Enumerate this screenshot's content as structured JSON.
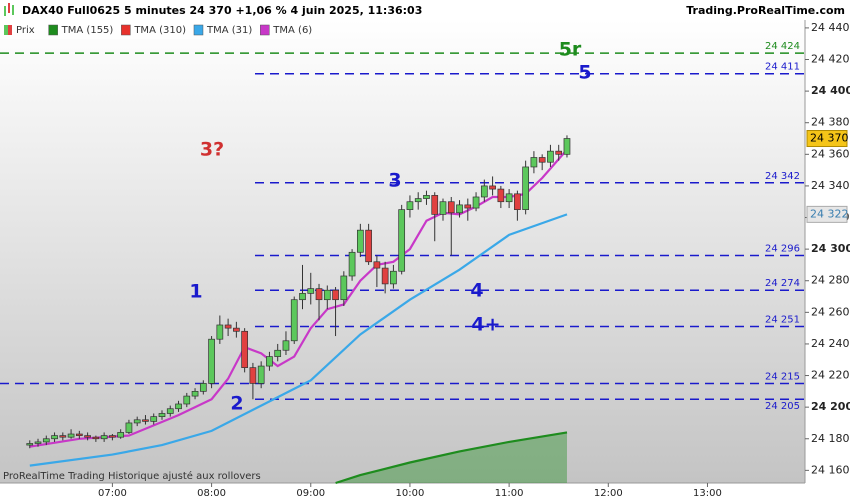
{
  "header": {
    "title": "DAX40 Full0625 5 minutes 24 370 +1,06 % 4 juin 2025, 11:36:03",
    "site": "Trading.ProRealTime.com"
  },
  "footer": "ProRealTime Trading  Historique ajusté aux rollovers",
  "chart_data": {
    "type": "candlestick",
    "price_name": "Prix",
    "up_color": "#5cc85c",
    "down_color": "#e04040",
    "x": [
      370,
      375,
      380,
      385,
      390,
      395,
      400,
      405,
      410,
      415,
      420,
      425,
      430,
      435,
      440,
      445,
      450,
      455,
      460,
      465,
      470,
      475,
      480,
      485,
      490,
      495,
      500,
      505,
      510,
      515,
      520,
      525,
      530,
      535,
      540,
      545,
      550,
      555,
      560,
      565,
      570,
      575,
      580,
      585,
      590,
      595,
      600,
      605,
      610,
      615,
      620,
      625,
      630,
      635,
      640,
      645,
      650,
      655,
      660,
      665,
      670,
      675,
      680,
      685,
      690,
      695
    ],
    "open": [
      24176,
      24177,
      24178,
      24180,
      24182,
      24181,
      24183,
      24182,
      24181,
      24180,
      24182,
      24181,
      24184,
      24190,
      24192,
      24191,
      24194,
      24196,
      24199,
      24202,
      24207,
      24210,
      24215,
      24243,
      24252,
      24250,
      24248,
      24225,
      24215,
      24226,
      24232,
      24236,
      24242,
      24268,
      24272,
      24275,
      24268,
      24274,
      24268,
      24283,
      24298,
      24312,
      24292,
      24288,
      24278,
      24286,
      24325,
      24330,
      24332,
      24334,
      24322,
      24330,
      24323,
      24328,
      24326,
      24333,
      24340,
      24338,
      24330,
      24335,
      24325,
      24352,
      24358,
      24355,
      24362,
      24360
    ],
    "high": [
      24179,
      24180,
      24182,
      24184,
      24184,
      24186,
      24185,
      24184,
      24182,
      24184,
      24183,
      24186,
      24192,
      24194,
      24195,
      24196,
      24198,
      24201,
      24204,
      24209,
      24212,
      24217,
      24245,
      24258,
      24256,
      24254,
      24250,
      24228,
      24229,
      24235,
      24240,
      24248,
      24270,
      24290,
      24285,
      24278,
      24277,
      24276,
      24286,
      24300,
      24316,
      24316,
      24296,
      24292,
      24290,
      24328,
      24334,
      24336,
      24337,
      24336,
      24332,
      24333,
      24331,
      24332,
      24336,
      24344,
      24346,
      24340,
      24338,
      24337,
      24356,
      24362,
      24360,
      24366,
      24366,
      24372
    ],
    "low": [
      24174,
      24175,
      24176,
      24178,
      24179,
      24180,
      24180,
      24179,
      24178,
      24178,
      24179,
      24180,
      24183,
      24188,
      24189,
      24189,
      24192,
      24194,
      24197,
      24200,
      24205,
      24208,
      24212,
      24240,
      24245,
      24244,
      24222,
      24205,
      24212,
      24223,
      24229,
      24233,
      24240,
      24262,
      24265,
      24255,
      24262,
      24245,
      24264,
      24280,
      24295,
      24290,
      24276,
      24272,
      24275,
      24284,
      24320,
      24325,
      24328,
      24305,
      24318,
      24296,
      24320,
      24318,
      24324,
      24330,
      24334,
      24326,
      24326,
      24318,
      24322,
      24348,
      24350,
      24352,
      24356,
      24358
    ],
    "close": [
      24177,
      24178,
      24180,
      24182,
      24181,
      24183,
      24182,
      24181,
      24180,
      24182,
      24181,
      24184,
      24190,
      24192,
      24191,
      24194,
      24196,
      24199,
      24202,
      24207,
      24210,
      24215,
      24243,
      24252,
      24250,
      24248,
      24225,
      24215,
      24226,
      24232,
      24236,
      24242,
      24268,
      24272,
      24275,
      24268,
      24274,
      24268,
      24283,
      24298,
      24312,
      24292,
      24288,
      24278,
      24286,
      24325,
      24330,
      24332,
      24334,
      24322,
      24330,
      24323,
      24328,
      24326,
      24333,
      24340,
      24338,
      24330,
      24335,
      24325,
      24352,
      24358,
      24355,
      24362,
      24360,
      24370
    ],
    "series": [
      {
        "name": "TMA (155)",
        "color": "#1e8c1e",
        "fill": true,
        "x": [
          555,
          570,
          600,
          630,
          660,
          695
        ],
        "values": [
          24152,
          24157,
          24165,
          24172,
          24178,
          24184
        ]
      },
      {
        "name": "TMA (310)",
        "color": "#e8322c"
      },
      {
        "name": "TMA (31)",
        "color": "#3aa8e8",
        "x": [
          370,
          420,
          450,
          480,
          510,
          540,
          570,
          600,
          630,
          660,
          695
        ],
        "values": [
          24163,
          24170,
          24176,
          24185,
          24201,
          24217,
          24246,
          24268,
          24287,
          24309,
          24322
        ],
        "last": {
          "value": 24322,
          "label": "24 322"
        }
      },
      {
        "name": "TMA (6)",
        "color": "#c838c8",
        "x": [
          370,
          400,
          430,
          460,
          480,
          490,
          500,
          510,
          520,
          530,
          540,
          550,
          560,
          570,
          580,
          590,
          600,
          610,
          620,
          630,
          640,
          650,
          660,
          670,
          680,
          695
        ],
        "values": [
          24175,
          24180,
          24182,
          24195,
          24205,
          24218,
          24238,
          24234,
          24226,
          24232,
          24250,
          24262,
          24265,
          24280,
          24290,
          24292,
          24300,
          24318,
          24323,
          24322,
          24327,
          24333,
          24333,
          24335,
          24345,
          24363
        ]
      }
    ],
    "last_price": {
      "value": 24370,
      "label": "24 370"
    },
    "levels": [
      {
        "value": 24424,
        "label": "24 424",
        "color": "#1e8c1e"
      },
      {
        "value": 24411,
        "label": "24 411",
        "color": "#1a1acc"
      },
      {
        "value": 24342,
        "label": "24 342",
        "color": "#1a1acc"
      },
      {
        "value": 24296,
        "label": "24 296",
        "color": "#1a1acc"
      },
      {
        "value": 24274,
        "label": "24 274",
        "color": "#1a1acc"
      },
      {
        "value": 24251,
        "label": "24 251",
        "color": "#1a1acc"
      },
      {
        "value": 24215,
        "label": "24 215",
        "color": "#1a1acc"
      },
      {
        "value": 24205,
        "label": "24 205",
        "color": "#1a1acc"
      }
    ],
    "annotations": [
      {
        "text": "5r",
        "color": "#1e8c1e"
      },
      {
        "text": "5",
        "color": "#1a1acc"
      },
      {
        "text": "3",
        "color": "#1a1acc"
      },
      {
        "text": "3?",
        "color": "#d03030"
      },
      {
        "text": "1",
        "color": "#1a1acc"
      },
      {
        "text": "2",
        "color": "#1a1acc"
      },
      {
        "text": "4",
        "color": "#1a1acc"
      },
      {
        "text": "4+",
        "color": "#1a1acc"
      }
    ],
    "xlim": [
      352,
      839
    ],
    "xticks": [
      {
        "value": 420,
        "label": "07:00"
      },
      {
        "value": 480,
        "label": "08:00"
      },
      {
        "value": 540,
        "label": "09:00"
      },
      {
        "value": 600,
        "label": "10:00"
      },
      {
        "value": 660,
        "label": "11:00"
      },
      {
        "value": 720,
        "label": "12:00"
      },
      {
        "value": 780,
        "label": "13:00"
      }
    ],
    "ylim": [
      24152,
      24445
    ],
    "yticks": [
      {
        "value": 24160,
        "label": "24 160"
      },
      {
        "value": 24180,
        "label": "24 180"
      },
      {
        "value": 24200,
        "label": "24 200"
      },
      {
        "value": 24220,
        "label": "24 220"
      },
      {
        "value": 24240,
        "label": "24 240"
      },
      {
        "value": 24260,
        "label": "24 260"
      },
      {
        "value": 24280,
        "label": "24 280"
      },
      {
        "value": 24300,
        "label": "24 300"
      },
      {
        "value": 24320,
        "label": "24 320"
      },
      {
        "value": 24340,
        "label": "24 340"
      },
      {
        "value": 24360,
        "label": "24 360"
      },
      {
        "value": 24380,
        "label": "24 380"
      },
      {
        "value": 24400,
        "label": "24 400"
      },
      {
        "value": 24420,
        "label": "24 420"
      },
      {
        "value": 24440,
        "label": "24 440"
      }
    ]
  }
}
